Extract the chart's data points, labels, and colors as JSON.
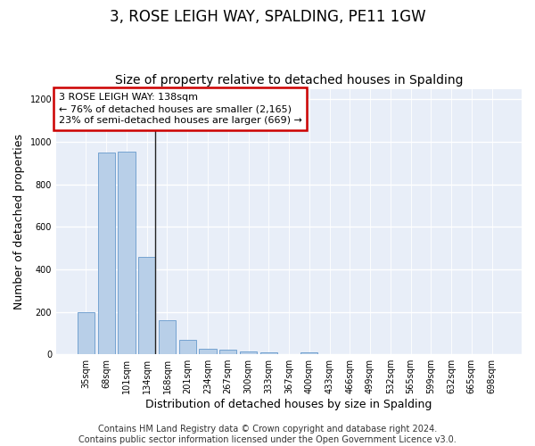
{
  "title": "3, ROSE LEIGH WAY, SPALDING, PE11 1GW",
  "subtitle": "Size of property relative to detached houses in Spalding",
  "xlabel": "Distribution of detached houses by size in Spalding",
  "ylabel": "Number of detached properties",
  "categories": [
    "35sqm",
    "68sqm",
    "101sqm",
    "134sqm",
    "168sqm",
    "201sqm",
    "234sqm",
    "267sqm",
    "300sqm",
    "333sqm",
    "367sqm",
    "400sqm",
    "433sqm",
    "466sqm",
    "499sqm",
    "532sqm",
    "565sqm",
    "599sqm",
    "632sqm",
    "665sqm",
    "698sqm"
  ],
  "values": [
    200,
    950,
    955,
    460,
    160,
    70,
    25,
    20,
    15,
    10,
    0,
    10,
    0,
    0,
    0,
    0,
    0,
    0,
    0,
    0,
    0
  ],
  "bar_color": "#b8cfe8",
  "bar_edge_color": "#6699cc",
  "highlight_index": 3,
  "highlight_line_color": "#222222",
  "ylim": [
    0,
    1250
  ],
  "yticks": [
    0,
    200,
    400,
    600,
    800,
    1000,
    1200
  ],
  "annotation_text": "3 ROSE LEIGH WAY: 138sqm\n← 76% of detached houses are smaller (2,165)\n23% of semi-detached houses are larger (669) →",
  "annotation_box_facecolor": "#ffffff",
  "annotation_box_edge": "#cc0000",
  "footer": "Contains HM Land Registry data © Crown copyright and database right 2024.\nContains public sector information licensed under the Open Government Licence v3.0.",
  "bg_color": "#ffffff",
  "plot_bg_color": "#e8eef8",
  "grid_color": "#ffffff",
  "title_fontsize": 12,
  "subtitle_fontsize": 10,
  "axis_label_fontsize": 9,
  "tick_fontsize": 7,
  "footer_fontsize": 7,
  "annotation_fontsize": 8
}
